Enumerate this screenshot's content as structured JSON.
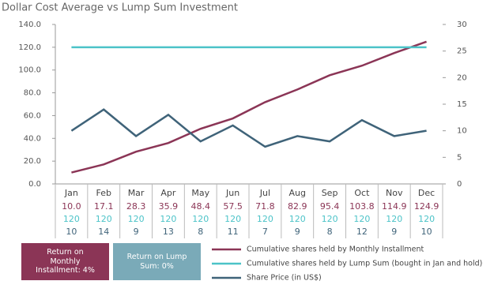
{
  "chart_data": {
    "type": "line",
    "title": "Dollar Cost Average vs Lump Sum Investment",
    "categories": [
      "Jan",
      "Feb",
      "Mar",
      "Apr",
      "May",
      "Jun",
      "Jul",
      "Aug",
      "Sep",
      "Oct",
      "Nov",
      "Dec"
    ],
    "ylim": [
      0,
      140
    ],
    "yticks": [
      {
        "value": 0,
        "label": "0.0"
      },
      {
        "value": 20,
        "label": "20.0"
      },
      {
        "value": 40,
        "label": "40.0"
      },
      {
        "value": 60,
        "label": "60.0"
      },
      {
        "value": 80,
        "label": "80.0"
      },
      {
        "value": 100,
        "label": "100.0"
      },
      {
        "value": 120,
        "label": "120.0"
      },
      {
        "value": 140,
        "label": "140.0"
      }
    ],
    "y2lim": [
      0,
      30
    ],
    "y2ticks": [
      0,
      5,
      10,
      15,
      20,
      25,
      30
    ],
    "grid": false,
    "series": [
      {
        "name": "Cumulative shares held by Monthly Installment",
        "color": "#8b3556",
        "values": [
          10.0,
          17.1,
          28.3,
          35.9,
          48.4,
          57.5,
          71.8,
          82.9,
          95.4,
          103.8,
          114.9,
          124.9
        ],
        "value_labels": [
          "10.0",
          "17.1",
          "28.3",
          "35.9",
          "48.4",
          "57.5",
          "71.8",
          "82.9",
          "95.4",
          "103.8",
          "114.9",
          "124.9"
        ]
      },
      {
        "name": "Cumulative shares held by Lump Sum (bought in Jan and hold)",
        "color": "#4cc3c8",
        "values": [
          120,
          120,
          120,
          120,
          120,
          120,
          120,
          120,
          120,
          120,
          120,
          120
        ]
      },
      {
        "name": "Share Price (in US$)",
        "color": "#3f6379",
        "axis": "y2",
        "values": [
          10,
          14,
          9,
          13,
          8,
          11,
          7,
          9,
          8,
          12,
          9,
          10
        ]
      }
    ],
    "annotations": [
      {
        "text": "Return on Monthly Installment: 4%",
        "color": "#8b3556"
      },
      {
        "text": "Return on Lump Sum: 0%",
        "color": "#7aaab8"
      }
    ]
  }
}
